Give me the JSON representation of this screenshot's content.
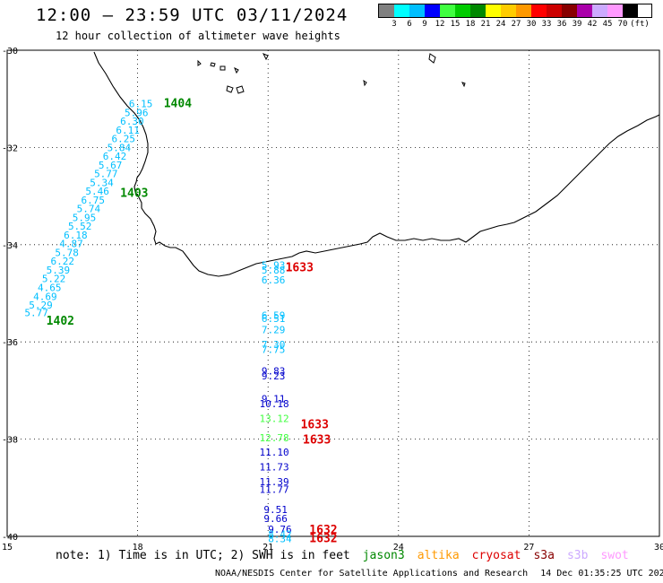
{
  "title": "12:00 – 23:59 UTC 03/11/2024",
  "subtitle": "12 hour collection of altimeter wave heights",
  "legend": {
    "colors": [
      "#808080",
      "#00ffff",
      "#00bfff",
      "#0000ff",
      "#40ff40",
      "#00cc00",
      "#008800",
      "#ffff00",
      "#ffcc00",
      "#ff9900",
      "#ff0000",
      "#cc0000",
      "#880000",
      "#aa00aa",
      "#ccaaff",
      "#ff99ff",
      "#000000"
    ],
    "labels": [
      "3",
      "6",
      "9",
      "12",
      "15",
      "18",
      "21",
      "24",
      "27",
      "30",
      "33",
      "36",
      "39",
      "42",
      "45",
      "70"
    ],
    "unit": "(ft)"
  },
  "axes": {
    "x_ticks": [
      "15",
      "18",
      "21",
      "24",
      "27",
      "30"
    ],
    "y_ticks": [
      "-30",
      "-32",
      "-34",
      "-36",
      "-38",
      "-40"
    ]
  },
  "passes": [
    {
      "id": "1404",
      "color": "#008800",
      "label_lon": 18.6,
      "label_lat": -31.08
    },
    {
      "id": "1403",
      "color": "#008800",
      "label_lon": 17.6,
      "label_lat": -32.92
    },
    {
      "id": "1402",
      "color": "#008800",
      "label_lon": 15.9,
      "label_lat": -35.55
    },
    {
      "id": "1633",
      "color": "#dd0000",
      "label_lon": 21.4,
      "label_lat": -34.46
    },
    {
      "id": "1633",
      "color": "#dd0000",
      "label_lon": 21.75,
      "label_lat": -37.68
    },
    {
      "id": "1633",
      "color": "#dd0000",
      "label_lon": 21.8,
      "label_lat": -38.0
    },
    {
      "id": "1632",
      "color": "#dd0000",
      "label_lon": 21.95,
      "label_lat": -39.85
    },
    {
      "id": "1632",
      "color": "#dd0000",
      "label_lon": 21.95,
      "label_lat": -40.03
    }
  ],
  "observations": [
    {
      "v": "6.15",
      "lon": 17.8,
      "lat": -31.1,
      "c": "#00bfff"
    },
    {
      "v": "5.96",
      "lon": 17.7,
      "lat": -31.28,
      "c": "#00bfff"
    },
    {
      "v": "6.30",
      "lon": 17.6,
      "lat": -31.46,
      "c": "#00bfff"
    },
    {
      "v": "6.11",
      "lon": 17.5,
      "lat": -31.64,
      "c": "#00bfff"
    },
    {
      "v": "6.25",
      "lon": 17.4,
      "lat": -31.82,
      "c": "#00bfff"
    },
    {
      "v": "5.84",
      "lon": 17.3,
      "lat": -32.0,
      "c": "#00bfff"
    },
    {
      "v": "6.42",
      "lon": 17.2,
      "lat": -32.18,
      "c": "#00bfff"
    },
    {
      "v": "5.67",
      "lon": 17.1,
      "lat": -32.36,
      "c": "#00bfff"
    },
    {
      "v": "5.77",
      "lon": 17.0,
      "lat": -32.54,
      "c": "#00bfff"
    },
    {
      "v": "5.34",
      "lon": 16.9,
      "lat": -32.72,
      "c": "#00bfff"
    },
    {
      "v": "5.46",
      "lon": 16.8,
      "lat": -32.9,
      "c": "#00bfff"
    },
    {
      "v": "6.75",
      "lon": 16.7,
      "lat": -33.08,
      "c": "#00bfff"
    },
    {
      "v": "5.74",
      "lon": 16.6,
      "lat": -33.26,
      "c": "#00bfff"
    },
    {
      "v": "5.95",
      "lon": 16.5,
      "lat": -33.44,
      "c": "#00bfff"
    },
    {
      "v": "5.52",
      "lon": 16.4,
      "lat": -33.62,
      "c": "#00bfff"
    },
    {
      "v": "6.18",
      "lon": 16.3,
      "lat": -33.8,
      "c": "#00bfff"
    },
    {
      "v": "4.87",
      "lon": 16.2,
      "lat": -33.98,
      "c": "#00bfff"
    },
    {
      "v": "5.78",
      "lon": 16.1,
      "lat": -34.16,
      "c": "#00bfff"
    },
    {
      "v": "6.22",
      "lon": 16.0,
      "lat": -34.34,
      "c": "#00bfff"
    },
    {
      "v": "5.39",
      "lon": 15.9,
      "lat": -34.52,
      "c": "#00bfff"
    },
    {
      "v": "5.22",
      "lon": 15.8,
      "lat": -34.7,
      "c": "#00bfff"
    },
    {
      "v": "4.65",
      "lon": 15.7,
      "lat": -34.88,
      "c": "#00bfff"
    },
    {
      "v": "4.69",
      "lon": 15.6,
      "lat": -35.06,
      "c": "#00bfff"
    },
    {
      "v": "5.29",
      "lon": 15.5,
      "lat": -35.24,
      "c": "#00bfff"
    },
    {
      "v": "5.77",
      "lon": 15.4,
      "lat": -35.4,
      "c": "#00bfff"
    },
    {
      "v": "5.93",
      "lon": 20.85,
      "lat": -34.42,
      "c": "#00bfff"
    },
    {
      "v": "5.88",
      "lon": 20.85,
      "lat": -34.52,
      "c": "#00bfff"
    },
    {
      "v": "6.36",
      "lon": 20.85,
      "lat": -34.72,
      "c": "#00bfff"
    },
    {
      "v": "6.59",
      "lon": 20.85,
      "lat": -35.45,
      "c": "#00bfff"
    },
    {
      "v": "6.51",
      "lon": 20.85,
      "lat": -35.52,
      "c": "#00bfff"
    },
    {
      "v": "7.29",
      "lon": 20.85,
      "lat": -35.75,
      "c": "#00bfff"
    },
    {
      "v": "7.30",
      "lon": 20.85,
      "lat": -36.05,
      "c": "#00bfff"
    },
    {
      "v": "7.75",
      "lon": 20.85,
      "lat": -36.15,
      "c": "#00bfff"
    },
    {
      "v": "9.83",
      "lon": 20.85,
      "lat": -36.6,
      "c": "#0000cc"
    },
    {
      "v": "9.23",
      "lon": 20.85,
      "lat": -36.7,
      "c": "#0000cc"
    },
    {
      "v": "9.11",
      "lon": 20.85,
      "lat": -37.17,
      "c": "#0000cc"
    },
    {
      "v": "10.18",
      "lon": 20.8,
      "lat": -37.27,
      "c": "#0000cc"
    },
    {
      "v": "13.12",
      "lon": 20.8,
      "lat": -37.57,
      "c": "#40ff40"
    },
    {
      "v": "12.78",
      "lon": 20.8,
      "lat": -37.97,
      "c": "#40ff40"
    },
    {
      "v": "11.10",
      "lon": 20.8,
      "lat": -38.27,
      "c": "#0000cc"
    },
    {
      "v": "11.73",
      "lon": 20.8,
      "lat": -38.57,
      "c": "#0000cc"
    },
    {
      "v": "11.39",
      "lon": 20.8,
      "lat": -38.87,
      "c": "#0000cc"
    },
    {
      "v": "11.77",
      "lon": 20.8,
      "lat": -39.03,
      "c": "#0000cc"
    },
    {
      "v": "9.51",
      "lon": 20.9,
      "lat": -39.45,
      "c": "#0000cc"
    },
    {
      "v": "9.66",
      "lon": 20.9,
      "lat": -39.63,
      "c": "#0000cc"
    },
    {
      "v": "9.76",
      "lon": 21.0,
      "lat": -39.85,
      "c": "#0000cc"
    },
    {
      "v": "8.42",
      "lon": 21.0,
      "lat": -39.95,
      "c": "#00bfff"
    },
    {
      "v": "8.34",
      "lon": 21.0,
      "lat": -40.05,
      "c": "#00bfff"
    }
  ],
  "footer": {
    "note": "note: 1) Time is in UTC; 2) SWH is in feet",
    "satellites": [
      {
        "name": "jason3",
        "color": "#008800"
      },
      {
        "name": "altika",
        "color": "#ff9900"
      },
      {
        "name": "cryosat",
        "color": "#dd0000"
      },
      {
        "name": "s3a",
        "color": "#880000"
      },
      {
        "name": "s3b",
        "color": "#ccaaff"
      },
      {
        "name": "swot",
        "color": "#ff99ff"
      }
    ],
    "credit": "NOAA/NESDIS Center for Satellite Applications and Research",
    "timestamp": "14 Dec 01:35:25 UTC 2024"
  }
}
